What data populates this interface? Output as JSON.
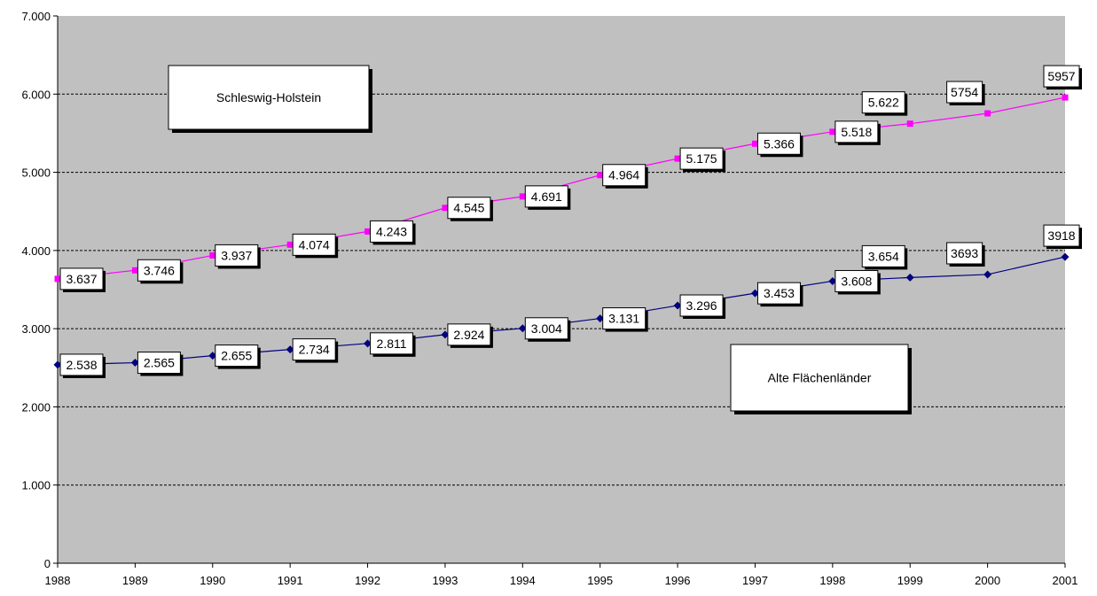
{
  "chart_data": {
    "type": "line",
    "title": "",
    "xlabel": "",
    "ylabel": "",
    "x": [
      "1988",
      "1989",
      "1990",
      "1991",
      "1992",
      "1993",
      "1994",
      "1995",
      "1996",
      "1997",
      "1998",
      "1999",
      "2000",
      "2001"
    ],
    "ylim": [
      0,
      7000
    ],
    "y_ticks": [
      "0",
      "1.000",
      "2.000",
      "3.000",
      "4.000",
      "5.000",
      "6.000",
      "7.000"
    ],
    "grid": true,
    "series": [
      {
        "name": "Schleswig-Holstein",
        "color": "#ff00ff",
        "marker": "square",
        "values": [
          3637,
          3746,
          3937,
          4074,
          4243,
          4545,
          4691,
          4964,
          5175,
          5366,
          5518,
          5622,
          5754,
          5957
        ],
        "labels": [
          "3.637",
          "3.746",
          "3.937",
          "4.074",
          "4.243",
          "4.545",
          "4.691",
          "4.964",
          "5.175",
          "5.366",
          "5.518",
          "5.622",
          "5754",
          "5957"
        ]
      },
      {
        "name": "Alte Flächenländer",
        "color": "#000080",
        "marker": "diamond",
        "values": [
          2538,
          2565,
          2655,
          2734,
          2811,
          2924,
          3004,
          3131,
          3296,
          3453,
          3608,
          3654,
          3693,
          3918
        ],
        "labels": [
          "2.538",
          "2.565",
          "2.655",
          "2.734",
          "2.811",
          "2.924",
          "3.004",
          "3.131",
          "3.296",
          "3.453",
          "3.608",
          "3.654",
          "3693",
          "3918"
        ]
      }
    ],
    "plot_background": "#c0c0c0"
  }
}
